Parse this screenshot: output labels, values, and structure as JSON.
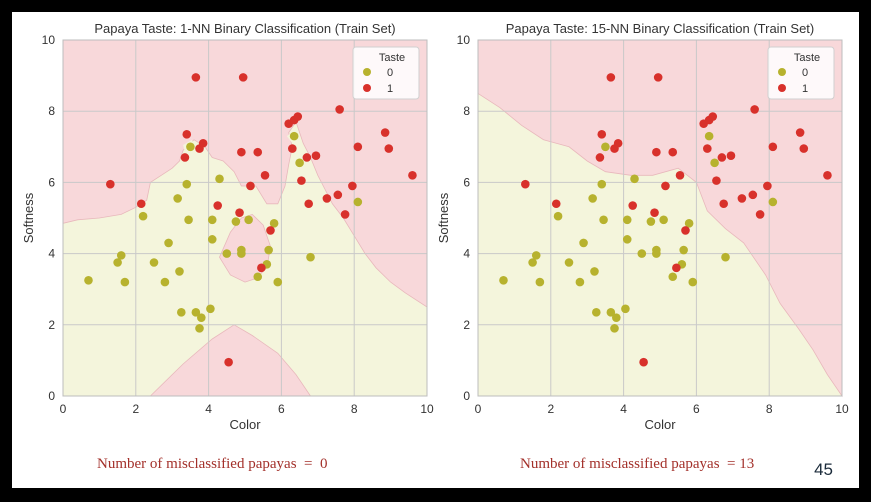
{
  "chart_data": [
    {
      "type": "scatter",
      "title": "Papaya Taste: 1-NN Binary Classification (Train Set)",
      "xlabel": "Color",
      "ylabel": "Softness",
      "xlim": [
        0,
        10
      ],
      "ylim": [
        0,
        10
      ],
      "xticks": [
        "0",
        "2",
        "4",
        "6",
        "8",
        "10"
      ],
      "yticks": [
        "0",
        "2",
        "4",
        "6",
        "8",
        "10"
      ],
      "grid": true,
      "legend": {
        "title": "Taste",
        "position": "top-right",
        "entries": [
          "0",
          "1"
        ]
      },
      "colors": {
        "class0": "#b7b22e",
        "class1": "#d8312b",
        "region0": "#f4f5dc",
        "region1": "#f8d8da"
      },
      "decision_regions": {
        "class1": [
          [
            [
              0,
              4.85
            ],
            [
              0.4,
              4.95
            ],
            [
              1.0,
              5.0
            ],
            [
              1.6,
              5.1
            ],
            [
              2.0,
              5.3
            ],
            [
              2.3,
              5.5
            ],
            [
              2.4,
              6.0
            ],
            [
              2.7,
              6.2
            ],
            [
              3.0,
              6.4
            ],
            [
              3.2,
              6.6
            ],
            [
              3.3,
              6.9
            ],
            [
              3.6,
              7.2
            ],
            [
              3.9,
              7.0
            ],
            [
              4.1,
              6.7
            ],
            [
              4.4,
              6.6
            ],
            [
              4.7,
              6.3
            ],
            [
              4.9,
              5.9
            ],
            [
              5.3,
              5.9
            ],
            [
              5.6,
              5.4
            ],
            [
              5.9,
              5.4
            ],
            [
              6.1,
              5.9
            ],
            [
              6.2,
              6.5
            ],
            [
              6.3,
              7.0
            ],
            [
              6.2,
              7.4
            ],
            [
              6.4,
              7.7
            ],
            [
              6.6,
              7.1
            ],
            [
              6.8,
              6.7
            ],
            [
              7.0,
              6.2
            ],
            [
              7.2,
              5.8
            ],
            [
              7.4,
              5.4
            ],
            [
              7.7,
              5.0
            ],
            [
              8.0,
              4.5
            ],
            [
              8.3,
              4.0
            ],
            [
              8.6,
              3.6
            ],
            [
              9.0,
              3.2
            ],
            [
              9.4,
              2.9
            ],
            [
              10,
              2.5
            ],
            [
              10,
              10
            ],
            [
              0,
              10
            ]
          ],
          [
            [
              4.3,
              3.9
            ],
            [
              4.6,
              4.6
            ],
            [
              4.9,
              5.0
            ],
            [
              5.2,
              5.1
            ],
            [
              5.5,
              4.8
            ],
            [
              5.7,
              4.2
            ],
            [
              5.6,
              3.6
            ],
            [
              5.3,
              3.3
            ],
            [
              5.0,
              3.2
            ],
            [
              4.6,
              3.4
            ]
          ],
          [
            [
              2.4,
              0
            ],
            [
              3.3,
              0.9
            ],
            [
              4.1,
              1.6
            ],
            [
              4.7,
              2.0
            ],
            [
              5.2,
              1.7
            ],
            [
              5.9,
              1.2
            ],
            [
              6.4,
              0.6
            ],
            [
              6.8,
              0
            ]
          ]
        ],
        "class0_islands": [
          [
            [
              3.3,
              7.05
            ],
            [
              3.55,
              7.2
            ],
            [
              3.6,
              6.9
            ],
            [
              3.35,
              6.85
            ]
          ],
          [
            [
              6.15,
              7.3
            ],
            [
              6.35,
              7.45
            ],
            [
              6.55,
              7.2
            ],
            [
              6.3,
              7.1
            ]
          ]
        ]
      },
      "series": [
        {
          "name": "0",
          "points": [
            [
              0.7,
              3.25
            ],
            [
              1.5,
              3.75
            ],
            [
              1.6,
              3.95
            ],
            [
              1.7,
              3.2
            ],
            [
              2.2,
              5.05
            ],
            [
              2.5,
              3.75
            ],
            [
              2.8,
              3.2
            ],
            [
              2.9,
              4.3
            ],
            [
              3.15,
              5.55
            ],
            [
              3.2,
              3.5
            ],
            [
              3.25,
              2.35
            ],
            [
              3.4,
              5.95
            ],
            [
              3.45,
              4.95
            ],
            [
              3.5,
              7.0
            ],
            [
              3.65,
              2.35
            ],
            [
              3.75,
              1.9
            ],
            [
              3.8,
              2.2
            ],
            [
              4.05,
              2.45
            ],
            [
              4.1,
              4.95
            ],
            [
              4.1,
              4.4
            ],
            [
              4.3,
              6.1
            ],
            [
              4.5,
              4.0
            ],
            [
              4.75,
              4.9
            ],
            [
              4.9,
              4.1
            ],
            [
              4.9,
              4.0
            ],
            [
              5.1,
              4.95
            ],
            [
              5.35,
              3.35
            ],
            [
              5.6,
              3.7
            ],
            [
              5.65,
              4.1
            ],
            [
              5.8,
              4.85
            ],
            [
              5.9,
              3.2
            ],
            [
              6.35,
              7.3
            ],
            [
              6.5,
              6.55
            ],
            [
              6.8,
              3.9
            ],
            [
              8.1,
              5.45
            ]
          ]
        },
        {
          "name": "1",
          "points": [
            [
              1.3,
              5.95
            ],
            [
              2.15,
              5.4
            ],
            [
              3.35,
              6.7
            ],
            [
              3.4,
              7.35
            ],
            [
              3.65,
              8.95
            ],
            [
              3.75,
              6.95
            ],
            [
              3.85,
              7.1
            ],
            [
              4.25,
              5.35
            ],
            [
              4.55,
              0.95
            ],
            [
              4.85,
              5.15
            ],
            [
              4.9,
              6.85
            ],
            [
              4.95,
              8.95
            ],
            [
              5.15,
              5.9
            ],
            [
              5.35,
              6.85
            ],
            [
              5.55,
              6.2
            ],
            [
              5.7,
              4.65
            ],
            [
              5.45,
              3.6
            ],
            [
              6.2,
              7.65
            ],
            [
              6.35,
              7.75
            ],
            [
              6.45,
              7.85
            ],
            [
              6.3,
              6.95
            ],
            [
              6.55,
              6.05
            ],
            [
              6.7,
              6.7
            ],
            [
              6.75,
              5.4
            ],
            [
              6.95,
              6.75
            ],
            [
              7.25,
              5.55
            ],
            [
              7.55,
              5.65
            ],
            [
              7.6,
              8.05
            ],
            [
              7.75,
              5.1
            ],
            [
              7.95,
              5.9
            ],
            [
              8.1,
              7.0
            ],
            [
              8.85,
              7.4
            ],
            [
              8.95,
              6.95
            ],
            [
              9.6,
              6.2
            ]
          ]
        }
      ]
    },
    {
      "type": "scatter",
      "title": "Papaya Taste: 15-NN Binary Classification (Train Set)",
      "xlabel": "Color",
      "ylabel": "Softness",
      "xlim": [
        0,
        10
      ],
      "ylim": [
        0,
        10
      ],
      "xticks": [
        "0",
        "2",
        "4",
        "6",
        "8",
        "10"
      ],
      "yticks": [
        "0",
        "2",
        "4",
        "6",
        "8",
        "10"
      ],
      "grid": true,
      "legend": {
        "title": "Taste",
        "position": "top-right",
        "entries": [
          "0",
          "1"
        ]
      },
      "colors": {
        "class0": "#b7b22e",
        "class1": "#d8312b",
        "region0": "#f4f5dc",
        "region1": "#f8d8da"
      },
      "decision_regions": {
        "class1": [
          [
            [
              0,
              8.5
            ],
            [
              0.6,
              8.1
            ],
            [
              1.2,
              7.6
            ],
            [
              1.8,
              7.2
            ],
            [
              2.5,
              7.0
            ],
            [
              3.0,
              6.6
            ],
            [
              3.5,
              6.3
            ],
            [
              4.2,
              6.2
            ],
            [
              4.8,
              6.2
            ],
            [
              5.5,
              6.4
            ],
            [
              6.0,
              6.0
            ],
            [
              6.3,
              5.2
            ],
            [
              6.8,
              4.7
            ],
            [
              7.3,
              4.3
            ],
            [
              7.9,
              3.4
            ],
            [
              8.3,
              2.6
            ],
            [
              8.8,
              1.9
            ],
            [
              9.2,
              1.3
            ],
            [
              9.6,
              0.6
            ],
            [
              10,
              0
            ],
            [
              10,
              10
            ],
            [
              0,
              10
            ]
          ]
        ],
        "class0_islands": []
      },
      "series": [
        {
          "name": "0",
          "points": [
            [
              0.7,
              3.25
            ],
            [
              1.5,
              3.75
            ],
            [
              1.6,
              3.95
            ],
            [
              1.7,
              3.2
            ],
            [
              2.2,
              5.05
            ],
            [
              2.5,
              3.75
            ],
            [
              2.8,
              3.2
            ],
            [
              2.9,
              4.3
            ],
            [
              3.15,
              5.55
            ],
            [
              3.2,
              3.5
            ],
            [
              3.25,
              2.35
            ],
            [
              3.4,
              5.95
            ],
            [
              3.45,
              4.95
            ],
            [
              3.5,
              7.0
            ],
            [
              3.65,
              2.35
            ],
            [
              3.75,
              1.9
            ],
            [
              3.8,
              2.2
            ],
            [
              4.05,
              2.45
            ],
            [
              4.1,
              4.95
            ],
            [
              4.1,
              4.4
            ],
            [
              4.3,
              6.1
            ],
            [
              4.5,
              4.0
            ],
            [
              4.75,
              4.9
            ],
            [
              4.9,
              4.1
            ],
            [
              4.9,
              4.0
            ],
            [
              5.1,
              4.95
            ],
            [
              5.35,
              3.35
            ],
            [
              5.6,
              3.7
            ],
            [
              5.65,
              4.1
            ],
            [
              5.8,
              4.85
            ],
            [
              5.9,
              3.2
            ],
            [
              6.35,
              7.3
            ],
            [
              6.5,
              6.55
            ],
            [
              6.8,
              3.9
            ],
            [
              8.1,
              5.45
            ]
          ]
        },
        {
          "name": "1",
          "points": [
            [
              1.3,
              5.95
            ],
            [
              2.15,
              5.4
            ],
            [
              3.35,
              6.7
            ],
            [
              3.4,
              7.35
            ],
            [
              3.65,
              8.95
            ],
            [
              3.75,
              6.95
            ],
            [
              3.85,
              7.1
            ],
            [
              4.25,
              5.35
            ],
            [
              4.55,
              0.95
            ],
            [
              4.85,
              5.15
            ],
            [
              4.9,
              6.85
            ],
            [
              4.95,
              8.95
            ],
            [
              5.15,
              5.9
            ],
            [
              5.35,
              6.85
            ],
            [
              5.55,
              6.2
            ],
            [
              5.7,
              4.65
            ],
            [
              5.45,
              3.6
            ],
            [
              6.2,
              7.65
            ],
            [
              6.35,
              7.75
            ],
            [
              6.45,
              7.85
            ],
            [
              6.3,
              6.95
            ],
            [
              6.55,
              6.05
            ],
            [
              6.7,
              6.7
            ],
            [
              6.75,
              5.4
            ],
            [
              6.95,
              6.75
            ],
            [
              7.25,
              5.55
            ],
            [
              7.55,
              5.65
            ],
            [
              7.6,
              8.05
            ],
            [
              7.75,
              5.1
            ],
            [
              7.95,
              5.9
            ],
            [
              8.1,
              7.0
            ],
            [
              8.85,
              7.4
            ],
            [
              8.95,
              6.95
            ],
            [
              9.6,
              6.2
            ]
          ]
        }
      ]
    }
  ],
  "captions": {
    "left": "Number of misclassified papayas  =  0",
    "right": "Number of misclassified papayas  = 13"
  },
  "page_number": "45"
}
